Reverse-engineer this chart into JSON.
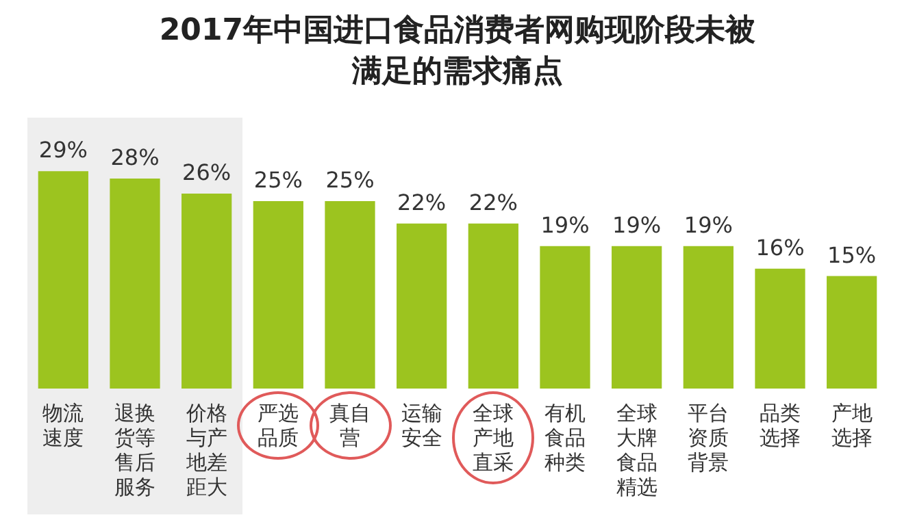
{
  "chart_data": {
    "type": "bar",
    "title": "2017年中国进口食品消费者网购现阶段未被满足的需求痛点",
    "categories": [
      "物流速度",
      "退换货等售后服务",
      "价格与产地差距大",
      "严选品质",
      "真自营",
      "运输安全",
      "全球产地直采",
      "有机食品种类",
      "全球大牌食品精选",
      "平台资质背景",
      "品类选择",
      "产地选择"
    ],
    "values": [
      29,
      28,
      26,
      25,
      25,
      22,
      22,
      19,
      19,
      19,
      16,
      15
    ],
    "value_labels": [
      "29%",
      "28%",
      "26%",
      "25%",
      "25%",
      "22%",
      "22%",
      "19%",
      "19%",
      "19%",
      "16%",
      "15%"
    ],
    "color": "#9cc41f",
    "tick_labels": "x",
    "grid": false,
    "legend": false,
    "bands": [
      {
        "axis": "x",
        "from": "物流速度",
        "to": "价格与产地差距大",
        "color": "#eeeeee"
      }
    ]
  }
}
